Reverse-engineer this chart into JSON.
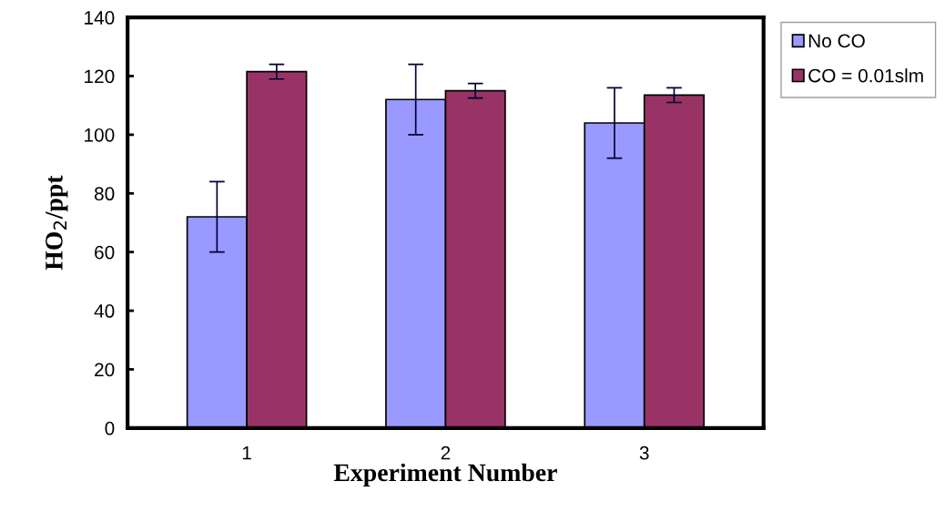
{
  "chart_data": {
    "type": "bar",
    "xlabel": "Experiment Number",
    "ylabel": "HO$_{2}$/ppt",
    "categories": [
      "1",
      "2",
      "3"
    ],
    "series": [
      {
        "name": "No CO",
        "color": "#9999ff",
        "values": [
          72,
          112,
          104
        ],
        "errors": [
          12,
          12,
          12
        ]
      },
      {
        "name": "CO = 0.01slm",
        "color": "#993366",
        "values": [
          121.5,
          115,
          113.5
        ],
        "errors": [
          2.5,
          2.5,
          2.5
        ]
      }
    ],
    "ylim": [
      0,
      140
    ],
    "yticks": [
      0,
      20,
      40,
      60,
      80,
      100,
      120,
      140
    ],
    "grid": false,
    "legend": "top right"
  }
}
